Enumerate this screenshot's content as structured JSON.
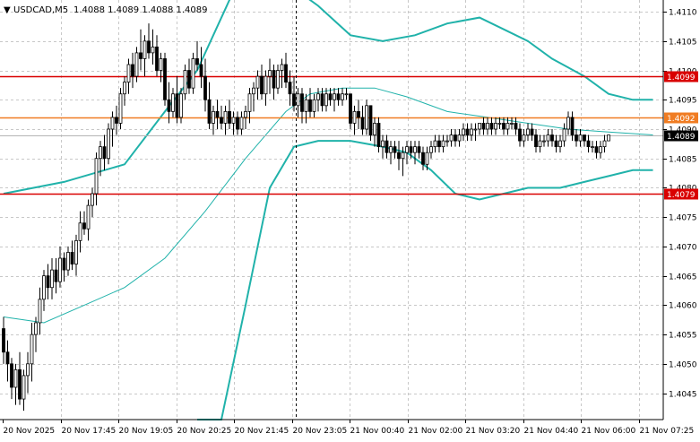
{
  "header": {
    "arrow": "▼",
    "symbol": "USDCAD,M5",
    "quote": "1.4088 1.4089 1.4088 1.4089"
  },
  "chart_data": {
    "type": "candlestick",
    "symbol": "USDCAD",
    "timeframe": "M5",
    "ohlc_header": {
      "open": 1.4088,
      "high": 1.4089,
      "low": 1.4088,
      "close": 1.4089
    },
    "y_range": [
      1.40405,
      1.4112
    ],
    "y_ticks": [
      "1.4110",
      "1.4105",
      "1.4100",
      "1.4095",
      "1.4090",
      "1.4085",
      "1.4080",
      "1.4075",
      "1.4070",
      "1.4065",
      "1.4060",
      "1.4055",
      "1.4050",
      "1.4045"
    ],
    "x_ticks": [
      "20 Nov 2025",
      "20 Nov 17:45",
      "20 Nov 19:05",
      "20 Nov 20:25",
      "20 Nov 21:45",
      "20 Nov 23:05",
      "21 Nov 00:40",
      "21 Nov 02:00",
      "21 Nov 03:20",
      "21 Nov 04:40",
      "21 Nov 06:00",
      "21 Nov 07:25"
    ],
    "horizontal_levels": [
      {
        "value": 1.4099,
        "label": "1.4099",
        "color": "#d90000"
      },
      {
        "value": 1.4092,
        "label": "1.4092",
        "color": "#f07c22"
      },
      {
        "value": 1.4079,
        "label": "1.4079",
        "color": "#d90000"
      }
    ],
    "current_price": {
      "value": 1.4089,
      "label": "1.4089"
    },
    "vertical_marker": {
      "x_label": "20 Nov 23:05",
      "style": "dashed"
    },
    "bollinger_bands": {
      "color": "#20b2aa",
      "upper": [
        [
          0,
          1.4079
        ],
        [
          15,
          1.4081
        ],
        [
          30,
          1.4084
        ],
        [
          40,
          1.4093
        ],
        [
          48,
          1.41
        ],
        [
          56,
          1.4112
        ],
        [
          62,
          1.4118
        ],
        [
          66,
          1.412
        ],
        [
          72,
          1.4114
        ],
        [
          78,
          1.4111
        ],
        [
          86,
          1.4106
        ],
        [
          94,
          1.4105
        ],
        [
          102,
          1.4106
        ],
        [
          110,
          1.4108
        ],
        [
          118,
          1.4109
        ],
        [
          124,
          1.4107
        ],
        [
          130,
          1.4105
        ],
        [
          136,
          1.4102
        ],
        [
          144,
          1.4099
        ],
        [
          150,
          1.4096
        ],
        [
          156,
          1.4095
        ],
        [
          161,
          1.4095
        ]
      ],
      "middle": [
        [
          0,
          1.4058
        ],
        [
          10,
          1.4057
        ],
        [
          20,
          1.406
        ],
        [
          30,
          1.4063
        ],
        [
          40,
          1.4068
        ],
        [
          50,
          1.4076
        ],
        [
          60,
          1.4085
        ],
        [
          70,
          1.4093
        ],
        [
          76,
          1.4096
        ],
        [
          84,
          1.4097
        ],
        [
          92,
          1.4097
        ],
        [
          100,
          1.40955
        ],
        [
          110,
          1.4093
        ],
        [
          120,
          1.4092
        ],
        [
          130,
          1.4091
        ],
        [
          140,
          1.409
        ],
        [
          150,
          1.40895
        ],
        [
          161,
          1.4089
        ]
      ],
      "lower": [
        [
          48,
          1.4
        ],
        [
          54,
          1.4035
        ],
        [
          60,
          1.406
        ],
        [
          66,
          1.408
        ],
        [
          72,
          1.4087
        ],
        [
          78,
          1.4088
        ],
        [
          86,
          1.4088
        ],
        [
          94,
          1.4087
        ],
        [
          100,
          1.4086
        ],
        [
          106,
          1.4083
        ],
        [
          112,
          1.4079
        ],
        [
          118,
          1.4078
        ],
        [
          124,
          1.4079
        ],
        [
          130,
          1.408
        ],
        [
          138,
          1.408
        ],
        [
          144,
          1.4081
        ],
        [
          150,
          1.4082
        ],
        [
          156,
          1.4083
        ],
        [
          161,
          1.4083
        ]
      ]
    },
    "candles": [
      {
        "o": 1.4056,
        "h": 1.4058,
        "l": 1.405,
        "c": 1.4052
      },
      {
        "o": 1.4052,
        "h": 1.4054,
        "l": 1.4047,
        "c": 1.405
      },
      {
        "o": 1.405,
        "h": 1.4051,
        "l": 1.4044,
        "c": 1.4046
      },
      {
        "o": 1.4046,
        "h": 1.405,
        "l": 1.4043,
        "c": 1.4049
      },
      {
        "o": 1.4049,
        "h": 1.4052,
        "l": 1.4043,
        "c": 1.4044
      },
      {
        "o": 1.4044,
        "h": 1.4049,
        "l": 1.4042,
        "c": 1.4048
      },
      {
        "o": 1.4048,
        "h": 1.4052,
        "l": 1.4045,
        "c": 1.405
      },
      {
        "o": 1.405,
        "h": 1.4057,
        "l": 1.4047,
        "c": 1.4055
      },
      {
        "o": 1.4055,
        "h": 1.4058,
        "l": 1.4052,
        "c": 1.4057
      },
      {
        "o": 1.4057,
        "h": 1.4063,
        "l": 1.4055,
        "c": 1.4061
      },
      {
        "o": 1.4061,
        "h": 1.4066,
        "l": 1.4059,
        "c": 1.4065
      },
      {
        "o": 1.4065,
        "h": 1.4067,
        "l": 1.4061,
        "c": 1.4063
      },
      {
        "o": 1.4063,
        "h": 1.4068,
        "l": 1.4061,
        "c": 1.4066
      },
      {
        "o": 1.4066,
        "h": 1.4068,
        "l": 1.4062,
        "c": 1.4064
      },
      {
        "o": 1.4064,
        "h": 1.407,
        "l": 1.4063,
        "c": 1.4068
      },
      {
        "o": 1.4068,
        "h": 1.4069,
        "l": 1.4064,
        "c": 1.4066
      },
      {
        "o": 1.4066,
        "h": 1.407,
        "l": 1.4065,
        "c": 1.4069
      },
      {
        "o": 1.4069,
        "h": 1.4071,
        "l": 1.4066,
        "c": 1.4067
      },
      {
        "o": 1.4067,
        "h": 1.4072,
        "l": 1.4065,
        "c": 1.4071
      },
      {
        "o": 1.4071,
        "h": 1.4076,
        "l": 1.4069,
        "c": 1.4074
      },
      {
        "o": 1.4074,
        "h": 1.4076,
        "l": 1.4072,
        "c": 1.4073
      },
      {
        "o": 1.4073,
        "h": 1.4078,
        "l": 1.4071,
        "c": 1.4077
      },
      {
        "o": 1.4077,
        "h": 1.408,
        "l": 1.4075,
        "c": 1.4079
      },
      {
        "o": 1.4079,
        "h": 1.4086,
        "l": 1.4077,
        "c": 1.4085
      },
      {
        "o": 1.4085,
        "h": 1.4088,
        "l": 1.4082,
        "c": 1.4087
      },
      {
        "o": 1.4087,
        "h": 1.4089,
        "l": 1.4083,
        "c": 1.4085
      },
      {
        "o": 1.4085,
        "h": 1.4091,
        "l": 1.4084,
        "c": 1.409
      },
      {
        "o": 1.409,
        "h": 1.4093,
        "l": 1.4087,
        "c": 1.4092
      },
      {
        "o": 1.4092,
        "h": 1.4094,
        "l": 1.4089,
        "c": 1.4091
      },
      {
        "o": 1.4091,
        "h": 1.4097,
        "l": 1.409,
        "c": 1.4096
      },
      {
        "o": 1.4096,
        "h": 1.4099,
        "l": 1.4094,
        "c": 1.4098
      },
      {
        "o": 1.4098,
        "h": 1.4102,
        "l": 1.4096,
        "c": 1.4101
      },
      {
        "o": 1.4101,
        "h": 1.4103,
        "l": 1.4097,
        "c": 1.4099
      },
      {
        "o": 1.4099,
        "h": 1.4104,
        "l": 1.4098,
        "c": 1.4103
      },
      {
        "o": 1.4103,
        "h": 1.4107,
        "l": 1.41,
        "c": 1.4102
      },
      {
        "o": 1.4102,
        "h": 1.4106,
        "l": 1.4099,
        "c": 1.4105
      },
      {
        "o": 1.4105,
        "h": 1.4108,
        "l": 1.4102,
        "c": 1.4103
      },
      {
        "o": 1.4103,
        "h": 1.4107,
        "l": 1.4101,
        "c": 1.4104
      },
      {
        "o": 1.4104,
        "h": 1.4106,
        "l": 1.4099,
        "c": 1.41
      },
      {
        "o": 1.41,
        "h": 1.4103,
        "l": 1.4098,
        "c": 1.4102
      },
      {
        "o": 1.4102,
        "h": 1.4103,
        "l": 1.4094,
        "c": 1.4095
      },
      {
        "o": 1.4095,
        "h": 1.4098,
        "l": 1.4091,
        "c": 1.4093
      },
      {
        "o": 1.4093,
        "h": 1.4097,
        "l": 1.4092,
        "c": 1.4096
      },
      {
        "o": 1.4096,
        "h": 1.4099,
        "l": 1.4091,
        "c": 1.4092
      },
      {
        "o": 1.4092,
        "h": 1.4097,
        "l": 1.4091,
        "c": 1.4096
      },
      {
        "o": 1.4096,
        "h": 1.4101,
        "l": 1.4095,
        "c": 1.41
      },
      {
        "o": 1.41,
        "h": 1.4102,
        "l": 1.4096,
        "c": 1.4097
      },
      {
        "o": 1.4097,
        "h": 1.4103,
        "l": 1.4096,
        "c": 1.4102
      },
      {
        "o": 1.4102,
        "h": 1.4105,
        "l": 1.41,
        "c": 1.4101
      },
      {
        "o": 1.4101,
        "h": 1.4104,
        "l": 1.4097,
        "c": 1.4099
      },
      {
        "o": 1.4099,
        "h": 1.4102,
        "l": 1.4093,
        "c": 1.4095
      },
      {
        "o": 1.4095,
        "h": 1.4098,
        "l": 1.409,
        "c": 1.4091
      },
      {
        "o": 1.4091,
        "h": 1.4094,
        "l": 1.4089,
        "c": 1.4093
      },
      {
        "o": 1.4093,
        "h": 1.4095,
        "l": 1.409,
        "c": 1.4092
      },
      {
        "o": 1.4092,
        "h": 1.4094,
        "l": 1.409,
        "c": 1.4091
      },
      {
        "o": 1.4091,
        "h": 1.4094,
        "l": 1.4089,
        "c": 1.4093
      },
      {
        "o": 1.4093,
        "h": 1.4095,
        "l": 1.409,
        "c": 1.4091
      },
      {
        "o": 1.4091,
        "h": 1.4093,
        "l": 1.4089,
        "c": 1.4092
      },
      {
        "o": 1.4092,
        "h": 1.4093,
        "l": 1.4089,
        "c": 1.409
      },
      {
        "o": 1.409,
        "h": 1.4093,
        "l": 1.4089,
        "c": 1.4092
      },
      {
        "o": 1.4092,
        "h": 1.4094,
        "l": 1.409,
        "c": 1.4093
      },
      {
        "o": 1.4093,
        "h": 1.4097,
        "l": 1.4091,
        "c": 1.4096
      },
      {
        "o": 1.4096,
        "h": 1.4098,
        "l": 1.4093,
        "c": 1.4097
      },
      {
        "o": 1.4097,
        "h": 1.41,
        "l": 1.4095,
        "c": 1.4099
      },
      {
        "o": 1.4099,
        "h": 1.4101,
        "l": 1.4095,
        "c": 1.4096
      },
      {
        "o": 1.4096,
        "h": 1.41,
        "l": 1.4094,
        "c": 1.4099
      },
      {
        "o": 1.4099,
        "h": 1.4102,
        "l": 1.4096,
        "c": 1.41
      },
      {
        "o": 1.41,
        "h": 1.4101,
        "l": 1.4095,
        "c": 1.4097
      },
      {
        "o": 1.4097,
        "h": 1.4101,
        "l": 1.4096,
        "c": 1.41
      },
      {
        "o": 1.41,
        "h": 1.4102,
        "l": 1.4097,
        "c": 1.4101
      },
      {
        "o": 1.4101,
        "h": 1.4103,
        "l": 1.4097,
        "c": 1.4098
      },
      {
        "o": 1.4098,
        "h": 1.41,
        "l": 1.4094,
        "c": 1.4096
      },
      {
        "o": 1.4096,
        "h": 1.4099,
        "l": 1.4093,
        "c": 1.4094
      },
      {
        "o": 1.4094,
        "h": 1.4097,
        "l": 1.4092,
        "c": 1.4096
      },
      {
        "o": 1.4096,
        "h": 1.4097,
        "l": 1.4091,
        "c": 1.4093
      },
      {
        "o": 1.4093,
        "h": 1.4096,
        "l": 1.4091,
        "c": 1.4095
      },
      {
        "o": 1.4095,
        "h": 1.4097,
        "l": 1.4092,
        "c": 1.4093
      },
      {
        "o": 1.4093,
        "h": 1.4096,
        "l": 1.4092,
        "c": 1.4095
      },
      {
        "o": 1.4095,
        "h": 1.4097,
        "l": 1.4093,
        "c": 1.4096
      },
      {
        "o": 1.4096,
        "h": 1.4097,
        "l": 1.4093,
        "c": 1.4094
      },
      {
        "o": 1.4094,
        "h": 1.4097,
        "l": 1.4093,
        "c": 1.4096
      },
      {
        "o": 1.4096,
        "h": 1.4097,
        "l": 1.4094,
        "c": 1.4095
      },
      {
        "o": 1.4095,
        "h": 1.4097,
        "l": 1.4093,
        "c": 1.4096
      },
      {
        "o": 1.4096,
        "h": 1.4097,
        "l": 1.4094,
        "c": 1.4095
      },
      {
        "o": 1.4095,
        "h": 1.4097,
        "l": 1.4094,
        "c": 1.4096
      },
      {
        "o": 1.4096,
        "h": 1.4097,
        "l": 1.4095,
        "c": 1.4096
      },
      {
        "o": 1.4096,
        "h": 1.4096,
        "l": 1.409,
        "c": 1.4091
      },
      {
        "o": 1.4091,
        "h": 1.4094,
        "l": 1.4089,
        "c": 1.4093
      },
      {
        "o": 1.4093,
        "h": 1.4095,
        "l": 1.409,
        "c": 1.4092
      },
      {
        "o": 1.4092,
        "h": 1.4094,
        "l": 1.4089,
        "c": 1.409
      },
      {
        "o": 1.409,
        "h": 1.4095,
        "l": 1.4089,
        "c": 1.4094
      },
      {
        "o": 1.4094,
        "h": 1.4094,
        "l": 1.4088,
        "c": 1.4089
      },
      {
        "o": 1.4089,
        "h": 1.4092,
        "l": 1.4087,
        "c": 1.4091
      },
      {
        "o": 1.4091,
        "h": 1.4092,
        "l": 1.4086,
        "c": 1.4087
      },
      {
        "o": 1.4087,
        "h": 1.4089,
        "l": 1.4085,
        "c": 1.4088
      },
      {
        "o": 1.4088,
        "h": 1.4089,
        "l": 1.4085,
        "c": 1.4086
      },
      {
        "o": 1.4086,
        "h": 1.4088,
        "l": 1.4084,
        "c": 1.4087
      },
      {
        "o": 1.4087,
        "h": 1.4088,
        "l": 1.4085,
        "c": 1.4086
      },
      {
        "o": 1.4086,
        "h": 1.4088,
        "l": 1.4083,
        "c": 1.4085
      },
      {
        "o": 1.4085,
        "h": 1.4087,
        "l": 1.4082,
        "c": 1.4086
      },
      {
        "o": 1.4086,
        "h": 1.4088,
        "l": 1.4084,
        "c": 1.4087
      },
      {
        "o": 1.4087,
        "h": 1.4088,
        "l": 1.4085,
        "c": 1.4086
      },
      {
        "o": 1.4086,
        "h": 1.4088,
        "l": 1.4084,
        "c": 1.4087
      },
      {
        "o": 1.4087,
        "h": 1.4088,
        "l": 1.4085,
        "c": 1.4086
      },
      {
        "o": 1.4086,
        "h": 1.4087,
        "l": 1.4083,
        "c": 1.4084
      },
      {
        "o": 1.4084,
        "h": 1.4087,
        "l": 1.4083,
        "c": 1.4086
      },
      {
        "o": 1.4086,
        "h": 1.4088,
        "l": 1.4085,
        "c": 1.4087
      },
      {
        "o": 1.4087,
        "h": 1.4089,
        "l": 1.4086,
        "c": 1.4088
      },
      {
        "o": 1.4088,
        "h": 1.4089,
        "l": 1.4086,
        "c": 1.4087
      },
      {
        "o": 1.4087,
        "h": 1.4089,
        "l": 1.4086,
        "c": 1.4088
      },
      {
        "o": 1.4088,
        "h": 1.4089,
        "l": 1.4087,
        "c": 1.4088
      },
      {
        "o": 1.4088,
        "h": 1.409,
        "l": 1.4087,
        "c": 1.4089
      },
      {
        "o": 1.4089,
        "h": 1.409,
        "l": 1.4087,
        "c": 1.4088
      },
      {
        "o": 1.4088,
        "h": 1.409,
        "l": 1.4087,
        "c": 1.4089
      },
      {
        "o": 1.4089,
        "h": 1.4091,
        "l": 1.4088,
        "c": 1.409
      },
      {
        "o": 1.409,
        "h": 1.4091,
        "l": 1.4088,
        "c": 1.4089
      },
      {
        "o": 1.4089,
        "h": 1.4091,
        "l": 1.4088,
        "c": 1.409
      },
      {
        "o": 1.409,
        "h": 1.4091,
        "l": 1.4088,
        "c": 1.409
      },
      {
        "o": 1.409,
        "h": 1.4091,
        "l": 1.4089,
        "c": 1.4091
      },
      {
        "o": 1.4091,
        "h": 1.4092,
        "l": 1.4089,
        "c": 1.409
      },
      {
        "o": 1.409,
        "h": 1.4092,
        "l": 1.4089,
        "c": 1.4091
      },
      {
        "o": 1.4091,
        "h": 1.4092,
        "l": 1.4089,
        "c": 1.409
      },
      {
        "o": 1.409,
        "h": 1.4092,
        "l": 1.4089,
        "c": 1.4091
      },
      {
        "o": 1.4091,
        "h": 1.4092,
        "l": 1.409,
        "c": 1.4091
      },
      {
        "o": 1.4091,
        "h": 1.4092,
        "l": 1.4089,
        "c": 1.409
      },
      {
        "o": 1.409,
        "h": 1.4092,
        "l": 1.4089,
        "c": 1.4091
      },
      {
        "o": 1.4091,
        "h": 1.4092,
        "l": 1.409,
        "c": 1.4091
      },
      {
        "o": 1.4091,
        "h": 1.4092,
        "l": 1.4089,
        "c": 1.409
      },
      {
        "o": 1.409,
        "h": 1.4091,
        "l": 1.4087,
        "c": 1.4088
      },
      {
        "o": 1.4088,
        "h": 1.409,
        "l": 1.4087,
        "c": 1.4089
      },
      {
        "o": 1.4089,
        "h": 1.4091,
        "l": 1.4088,
        "c": 1.409
      },
      {
        "o": 1.409,
        "h": 1.4091,
        "l": 1.4088,
        "c": 1.4089
      },
      {
        "o": 1.4089,
        "h": 1.409,
        "l": 1.4086,
        "c": 1.4087
      },
      {
        "o": 1.4087,
        "h": 1.4089,
        "l": 1.4086,
        "c": 1.4088
      },
      {
        "o": 1.4088,
        "h": 1.4089,
        "l": 1.4087,
        "c": 1.4088
      },
      {
        "o": 1.4088,
        "h": 1.409,
        "l": 1.4087,
        "c": 1.4089
      },
      {
        "o": 1.4089,
        "h": 1.409,
        "l": 1.4087,
        "c": 1.4088
      },
      {
        "o": 1.4088,
        "h": 1.4089,
        "l": 1.4086,
        "c": 1.4087
      },
      {
        "o": 1.4087,
        "h": 1.4089,
        "l": 1.4086,
        "c": 1.4088
      },
      {
        "o": 1.4088,
        "h": 1.4091,
        "l": 1.4087,
        "c": 1.409
      },
      {
        "o": 1.409,
        "h": 1.4093,
        "l": 1.4089,
        "c": 1.4092
      },
      {
        "o": 1.4092,
        "h": 1.4093,
        "l": 1.4088,
        "c": 1.4089
      },
      {
        "o": 1.4089,
        "h": 1.409,
        "l": 1.4087,
        "c": 1.4088
      },
      {
        "o": 1.4088,
        "h": 1.409,
        "l": 1.4087,
        "c": 1.4089
      },
      {
        "o": 1.4089,
        "h": 1.4089,
        "l": 1.4087,
        "c": 1.4088
      },
      {
        "o": 1.4088,
        "h": 1.4089,
        "l": 1.4086,
        "c": 1.4087
      },
      {
        "o": 1.4087,
        "h": 1.4088,
        "l": 1.4086,
        "c": 1.4087
      },
      {
        "o": 1.4087,
        "h": 1.4088,
        "l": 1.4085,
        "c": 1.4086
      },
      {
        "o": 1.4086,
        "h": 1.4088,
        "l": 1.4085,
        "c": 1.4087
      },
      {
        "o": 1.4087,
        "h": 1.4089,
        "l": 1.4086,
        "c": 1.4088
      },
      {
        "o": 1.4088,
        "h": 1.4089,
        "l": 1.4088,
        "c": 1.4089
      }
    ]
  }
}
